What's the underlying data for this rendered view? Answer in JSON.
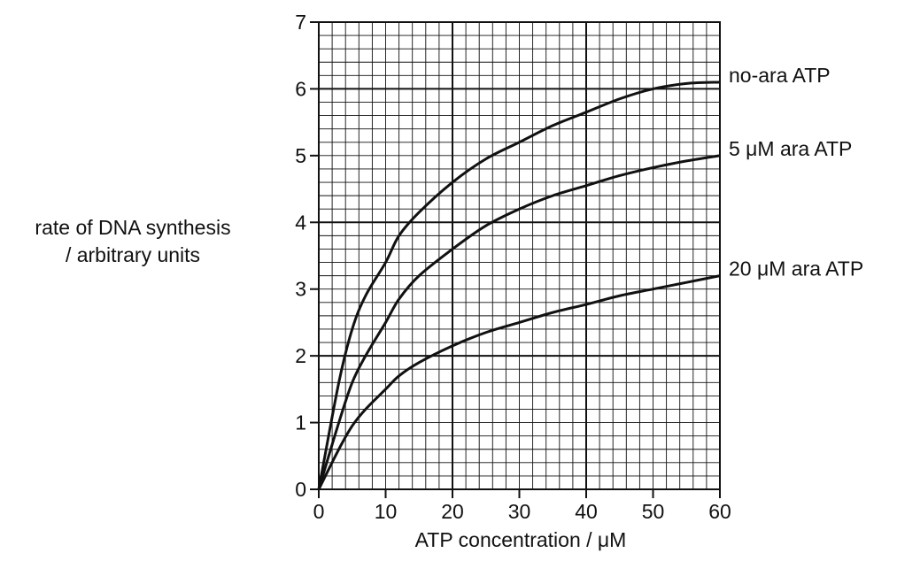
{
  "chart_data": {
    "type": "line",
    "title": "",
    "ylabel_line1": "rate of DNA synthesis",
    "ylabel_line2": "/ arbitrary units",
    "xlabel": "ATP concentration / μM",
    "xlim": [
      0,
      60
    ],
    "ylim": [
      0,
      7
    ],
    "xticks": [
      0,
      10,
      20,
      30,
      40,
      50,
      60
    ],
    "yticks": [
      0,
      1,
      2,
      3,
      4,
      5,
      6,
      7
    ],
    "minor_grid_step": {
      "x": 2,
      "y": 0.2
    },
    "major_grid_step": {
      "x": 20,
      "y": 2
    },
    "grid": true,
    "line_color": "#111111",
    "series": [
      {
        "name": "no-ara ATP",
        "x": [
          0,
          3,
          5,
          7,
          10,
          12,
          15,
          20,
          25,
          30,
          35,
          40,
          45,
          50,
          55,
          60
        ],
        "y": [
          0,
          1.6,
          2.4,
          2.9,
          3.4,
          3.8,
          4.15,
          4.6,
          4.95,
          5.2,
          5.45,
          5.65,
          5.85,
          6.0,
          6.08,
          6.1
        ]
      },
      {
        "name": "5 μM ara ATP",
        "x": [
          0,
          3,
          5,
          7,
          10,
          12,
          15,
          20,
          25,
          30,
          35,
          40,
          45,
          50,
          55,
          60
        ],
        "y": [
          0,
          1.0,
          1.6,
          2.0,
          2.5,
          2.85,
          3.2,
          3.6,
          3.95,
          4.2,
          4.4,
          4.55,
          4.7,
          4.82,
          4.92,
          5.0
        ]
      },
      {
        "name": "20 μM ara ATP",
        "x": [
          0,
          3,
          5,
          7,
          10,
          12,
          15,
          20,
          25,
          30,
          35,
          40,
          45,
          50,
          55,
          60
        ],
        "y": [
          0,
          0.6,
          0.95,
          1.2,
          1.5,
          1.7,
          1.9,
          2.15,
          2.35,
          2.5,
          2.65,
          2.77,
          2.9,
          3.0,
          3.1,
          3.2
        ]
      }
    ]
  }
}
